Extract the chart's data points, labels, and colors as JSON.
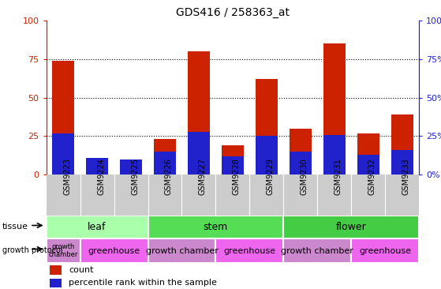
{
  "title": "GDS416 / 258363_at",
  "samples": [
    "GSM9223",
    "GSM9224",
    "GSM9225",
    "GSM9226",
    "GSM9227",
    "GSM9228",
    "GSM9229",
    "GSM9230",
    "GSM9231",
    "GSM9232",
    "GSM9233"
  ],
  "count_values": [
    74,
    10,
    10,
    23,
    80,
    19,
    62,
    30,
    85,
    27,
    39
  ],
  "percentile_values": [
    27,
    11,
    10,
    15,
    28,
    12,
    25,
    15,
    26,
    13,
    16
  ],
  "bar_color_red": "#CC2200",
  "bar_color_blue": "#2222CC",
  "tissue_groups": [
    {
      "label": "leaf",
      "start": 0,
      "end": 2,
      "color": "#AAFFAA"
    },
    {
      "label": "stem",
      "start": 3,
      "end": 6,
      "color": "#55DD55"
    },
    {
      "label": "flower",
      "start": 7,
      "end": 10,
      "color": "#44CC44"
    }
  ],
  "growth_groups": [
    {
      "label": "growth\nchamber",
      "start": 0,
      "end": 0,
      "color": "#CC88CC"
    },
    {
      "label": "greenhouse",
      "start": 1,
      "end": 2,
      "color": "#EE66EE"
    },
    {
      "label": "growth chamber",
      "start": 3,
      "end": 4,
      "color": "#CC88CC"
    },
    {
      "label": "greenhouse",
      "start": 5,
      "end": 6,
      "color": "#EE66EE"
    },
    {
      "label": "growth chamber",
      "start": 7,
      "end": 8,
      "color": "#CC88CC"
    },
    {
      "label": "greenhouse",
      "start": 9,
      "end": 10,
      "color": "#EE66EE"
    }
  ],
  "ylim": [
    0,
    100
  ],
  "yticks": [
    0,
    25,
    50,
    75,
    100
  ],
  "bg_color": "#CCCCCC",
  "plot_bg": "#FFFFFF",
  "left_axis_color": "#CC2200",
  "right_axis_color": "#2222CC"
}
